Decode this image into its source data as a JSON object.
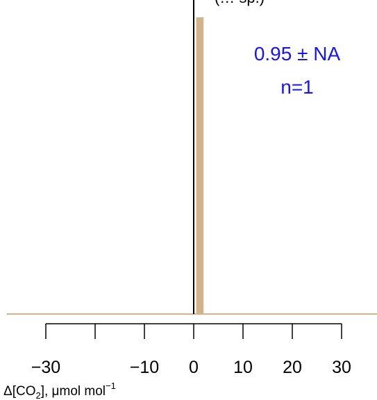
{
  "chart_data": {
    "type": "bar",
    "title": "(… sp.)",
    "xlabel": "Δ[CO₂], μmol mol⁻¹",
    "xlabel_parts": {
      "pre": "Δ[CO",
      "sub": "2",
      "mid": "], μmol mol",
      "sup": "−1"
    },
    "xlim": [
      -30,
      30
    ],
    "x_ticks": [
      -30,
      -20,
      -10,
      0,
      10,
      20,
      30
    ],
    "x_tick_labels": [
      "−30",
      "",
      "−10",
      "0",
      "10",
      "20",
      "30"
    ],
    "bars": [
      {
        "x0": 0.5,
        "x1": 2.0,
        "value": 1.0
      }
    ],
    "ylim": [
      0,
      1.0
    ],
    "reference_line_x": 0,
    "annotation": {
      "mean_text": "0.95 ± NA",
      "n_text": "n=1"
    },
    "grid": false,
    "colors": {
      "bar": "#d2b48c",
      "baseline": "#d2b48c",
      "annotation": "#1414ff",
      "axis": "#000000"
    }
  }
}
